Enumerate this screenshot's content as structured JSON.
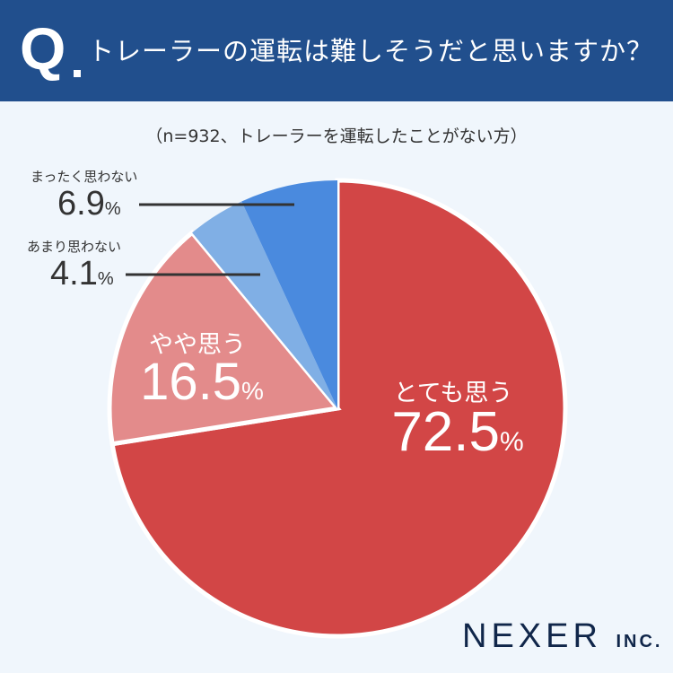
{
  "header": {
    "q": "Q",
    "title": "トレーラーの運転は難しそうだと思いますか？"
  },
  "subtitle": "（n=932、トレーラーを運転したことがない方）",
  "chart_data": {
    "type": "pie",
    "title": "トレーラーの運転は難しそうだと思いますか？",
    "categories": [
      "とても思う",
      "やや思う",
      "あまり思わない",
      "まったく思わない"
    ],
    "values": [
      72.5,
      16.5,
      4.1,
      6.9
    ],
    "value_labels": [
      "72.5",
      "16.5",
      "4.1",
      "6.9"
    ],
    "unit": "%",
    "colors": [
      "#d24646",
      "#e38b8b",
      "#80afe5",
      "#4a8ade"
    ]
  },
  "logo": {
    "name": "NEXER",
    "suffix": "INC."
  }
}
